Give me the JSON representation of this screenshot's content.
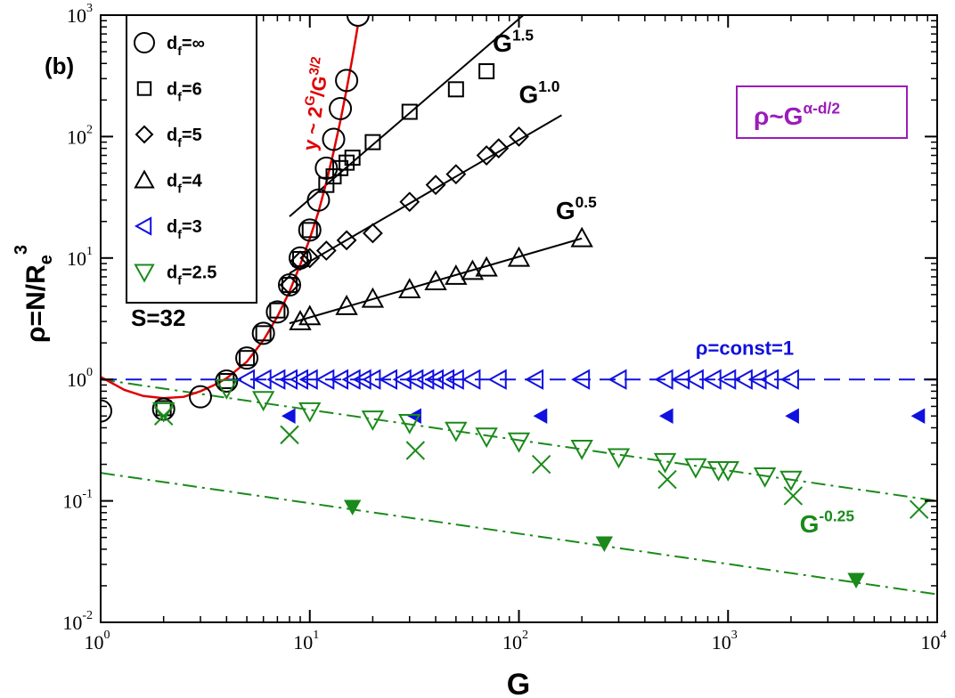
{
  "panel_label": "(b)",
  "sample_size_text": "S=32",
  "colors": {
    "black": "#000000",
    "blue": "#1010e0",
    "green": "#1a8a1a",
    "red": "#e00000",
    "purple": "#9b1bbb"
  },
  "chart_data": {
    "type": "scatter",
    "title": "",
    "xlabel": "G",
    "ylabel": "ρ=N/R_e^3",
    "xscale": "log",
    "yscale": "log",
    "xlim": [
      1,
      10000
    ],
    "ylim": [
      0.01,
      1000
    ],
    "x_ticks": [
      {
        "value": 1,
        "base": "10",
        "exp": "0"
      },
      {
        "value": 10,
        "base": "10",
        "exp": "1"
      },
      {
        "value": 100,
        "base": "10",
        "exp": "2"
      },
      {
        "value": 1000,
        "base": "10",
        "exp": "3"
      },
      {
        "value": 10000,
        "base": "10",
        "exp": "4"
      }
    ],
    "y_ticks": [
      {
        "value": 0.01,
        "base": "10",
        "exp": "-2"
      },
      {
        "value": 0.1,
        "base": "10",
        "exp": "-1"
      },
      {
        "value": 1,
        "base": "10",
        "exp": "0"
      },
      {
        "value": 10,
        "base": "10",
        "exp": "1"
      },
      {
        "value": 100,
        "base": "10",
        "exp": "2"
      },
      {
        "value": 1000,
        "base": "10",
        "exp": "3"
      }
    ],
    "series": [
      {
        "name": "d_f=∞",
        "sub": "f",
        "legend_text": "=∞",
        "marker": "circle",
        "color": "#000000",
        "filled": false,
        "points": [
          [
            1,
            0.55
          ],
          [
            2,
            0.57
          ],
          [
            3,
            0.72
          ],
          [
            4,
            0.97
          ],
          [
            5,
            1.5
          ],
          [
            6,
            2.4
          ],
          [
            7,
            3.6
          ],
          [
            8,
            6.0
          ],
          [
            9,
            10.0
          ],
          [
            10,
            17
          ],
          [
            11,
            30
          ],
          [
            12,
            55
          ],
          [
            13,
            95
          ],
          [
            14,
            170
          ],
          [
            15,
            290
          ],
          [
            17,
            1000
          ]
        ]
      },
      {
        "name": "d_f=6",
        "sub": "f",
        "legend_text": "=6",
        "marker": "square",
        "color": "#000000",
        "filled": false,
        "points": [
          [
            2,
            0.58
          ],
          [
            4,
            0.97
          ],
          [
            5,
            1.5
          ],
          [
            6,
            2.4
          ],
          [
            7,
            3.7
          ],
          [
            8,
            6.0
          ],
          [
            9,
            9.8
          ],
          [
            10,
            17
          ],
          [
            12,
            40
          ],
          [
            13,
            47
          ],
          [
            14,
            55
          ],
          [
            15,
            61
          ],
          [
            16,
            67
          ],
          [
            20,
            90
          ],
          [
            30,
            160
          ],
          [
            50,
            245
          ],
          [
            70,
            345
          ]
        ]
      },
      {
        "name": "d_f=5",
        "sub": "f",
        "legend_text": "=5",
        "marker": "diamond",
        "color": "#000000",
        "filled": false,
        "points": [
          [
            8,
            6.0
          ],
          [
            9,
            9.5
          ],
          [
            10,
            10.0
          ],
          [
            12,
            11.5
          ],
          [
            15,
            14
          ],
          [
            20,
            16
          ],
          [
            30,
            29
          ],
          [
            40,
            40
          ],
          [
            50,
            49
          ],
          [
            70,
            70
          ],
          [
            80,
            80
          ],
          [
            100,
            100
          ]
        ]
      },
      {
        "name": "d_f=4",
        "sub": "f",
        "legend_text": "=4",
        "marker": "triangle-up",
        "color": "#000000",
        "filled": false,
        "points": [
          [
            9,
            3.0
          ],
          [
            10,
            3.3
          ],
          [
            15,
            4.0
          ],
          [
            20,
            4.6
          ],
          [
            30,
            5.5
          ],
          [
            40,
            6.4
          ],
          [
            50,
            7.1
          ],
          [
            60,
            7.8
          ],
          [
            70,
            8.3
          ],
          [
            100,
            10
          ],
          [
            200,
            14.5
          ]
        ]
      },
      {
        "name": "d_f=3",
        "sub": "f",
        "legend_text": "=3",
        "marker": "triangle-left",
        "color": "#1010e0",
        "filled": false,
        "points": [
          [
            5,
            1
          ],
          [
            6,
            1
          ],
          [
            7,
            1
          ],
          [
            8,
            1
          ],
          [
            9,
            1
          ],
          [
            10,
            1
          ],
          [
            12,
            1
          ],
          [
            14,
            1
          ],
          [
            16,
            1
          ],
          [
            18,
            1
          ],
          [
            20,
            1
          ],
          [
            24,
            1
          ],
          [
            28,
            1
          ],
          [
            32,
            1
          ],
          [
            36,
            1
          ],
          [
            40,
            1
          ],
          [
            45,
            1
          ],
          [
            50,
            1
          ],
          [
            60,
            1
          ],
          [
            80,
            1
          ],
          [
            120,
            1
          ],
          [
            200,
            1
          ],
          [
            300,
            1
          ],
          [
            500,
            1
          ],
          [
            600,
            1
          ],
          [
            700,
            1
          ],
          [
            850,
            1
          ],
          [
            1000,
            1
          ],
          [
            1200,
            1
          ],
          [
            1400,
            1
          ],
          [
            1600,
            1
          ],
          [
            2000,
            1
          ]
        ]
      },
      {
        "name": "d_f=3 (filled)",
        "marker": "triangle-left",
        "color": "#1010e0",
        "filled": true,
        "in_legend": false,
        "points": [
          [
            8,
            0.5
          ],
          [
            32,
            0.5
          ],
          [
            128,
            0.5
          ],
          [
            512,
            0.5
          ],
          [
            2048,
            0.5
          ],
          [
            8192,
            0.5
          ]
        ]
      },
      {
        "name": "d_f=2.5",
        "sub": "f",
        "legend_text": "=2.5",
        "marker": "triangle-down",
        "color": "#1a8a1a",
        "filled": false,
        "points": [
          [
            2,
            0.55
          ],
          [
            4,
            0.85
          ],
          [
            6,
            0.68
          ],
          [
            10,
            0.55
          ],
          [
            20,
            0.47
          ],
          [
            30,
            0.44
          ],
          [
            50,
            0.38
          ],
          [
            70,
            0.34
          ],
          [
            100,
            0.31
          ],
          [
            200,
            0.27
          ],
          [
            300,
            0.23
          ],
          [
            500,
            0.21
          ],
          [
            700,
            0.19
          ],
          [
            900,
            0.18
          ],
          [
            1000,
            0.18
          ],
          [
            1500,
            0.16
          ],
          [
            2000,
            0.15
          ]
        ]
      },
      {
        "name": "crosses",
        "marker": "cross",
        "color": "#1a8a1a",
        "filled": false,
        "in_legend": false,
        "points": [
          [
            2,
            0.5
          ],
          [
            8,
            0.35
          ],
          [
            32,
            0.26
          ],
          [
            128,
            0.2
          ],
          [
            512,
            0.15
          ],
          [
            2048,
            0.11
          ],
          [
            8192,
            0.085
          ]
        ]
      },
      {
        "name": "filled down-triangles",
        "marker": "triangle-down",
        "color": "#1a8a1a",
        "filled": true,
        "in_legend": false,
        "points": [
          [
            16,
            0.09
          ],
          [
            256,
            0.045
          ],
          [
            4096,
            0.0225
          ]
        ]
      }
    ],
    "fit_lines": [
      {
        "name": "G^1.5",
        "base": "G",
        "exp": "1.5",
        "color": "#000000",
        "style": "solid",
        "from": [
          8,
          22
        ],
        "to": [
          105,
          1000
        ],
        "label_at": [
          75,
          500
        ]
      },
      {
        "name": "G^1.0",
        "base": "G",
        "exp": "1.0",
        "color": "#000000",
        "style": "solid",
        "from": [
          8,
          7.5
        ],
        "to": [
          160,
          150
        ],
        "label_at": [
          100,
          190
        ]
      },
      {
        "name": "G^0.5",
        "base": "G",
        "exp": "0.5",
        "color": "#000000",
        "style": "solid",
        "from": [
          8,
          2.9
        ],
        "to": [
          200,
          14.5
        ],
        "label_at": [
          150,
          21
        ]
      },
      {
        "name": "ρ=const=1",
        "text": "ρ=const=1",
        "color": "#1010e0",
        "style": "dashed",
        "from": [
          1,
          1
        ],
        "to": [
          10000,
          1
        ],
        "label_at": [
          700,
          1.6
        ]
      },
      {
        "name": "G^-0.25 (upper)",
        "base": "G",
        "exp": "-0.25",
        "color": "#1a8a1a",
        "style": "dashdot",
        "from": [
          1,
          1
        ],
        "to": [
          10000,
          0.1
        ],
        "label_at": [
          2200,
          0.055
        ]
      },
      {
        "name": "G^-0.25 (lower)",
        "color": "#1a8a1a",
        "style": "dashdot",
        "from": [
          1,
          0.17
        ],
        "to": [
          10000,
          0.017
        ]
      }
    ],
    "red_curve": {
      "label_prefix": "y ~ 2",
      "label_sup1": "G",
      "label_mid": "/G",
      "label_sup2": "3/2",
      "color": "#e00000",
      "points": [
        [
          1,
          1.05
        ],
        [
          1.3,
          0.82
        ],
        [
          1.6,
          0.73
        ],
        [
          2,
          0.7
        ],
        [
          2.5,
          0.72
        ],
        [
          3,
          0.8
        ],
        [
          3.5,
          0.9
        ],
        [
          4,
          1.02
        ],
        [
          5,
          1.4
        ],
        [
          6,
          2.1
        ],
        [
          7,
          3.3
        ],
        [
          8,
          5.3
        ],
        [
          9,
          8.8
        ],
        [
          10,
          14.5
        ],
        [
          11,
          24
        ],
        [
          12,
          42
        ],
        [
          13,
          75
        ],
        [
          14,
          135
        ],
        [
          15,
          245
        ],
        [
          16,
          450
        ],
        [
          17,
          830
        ]
      ]
    },
    "formula_box": {
      "text_base": "ρ~G",
      "text_exp": "α-d/2",
      "color": "#9b1bbb"
    }
  }
}
